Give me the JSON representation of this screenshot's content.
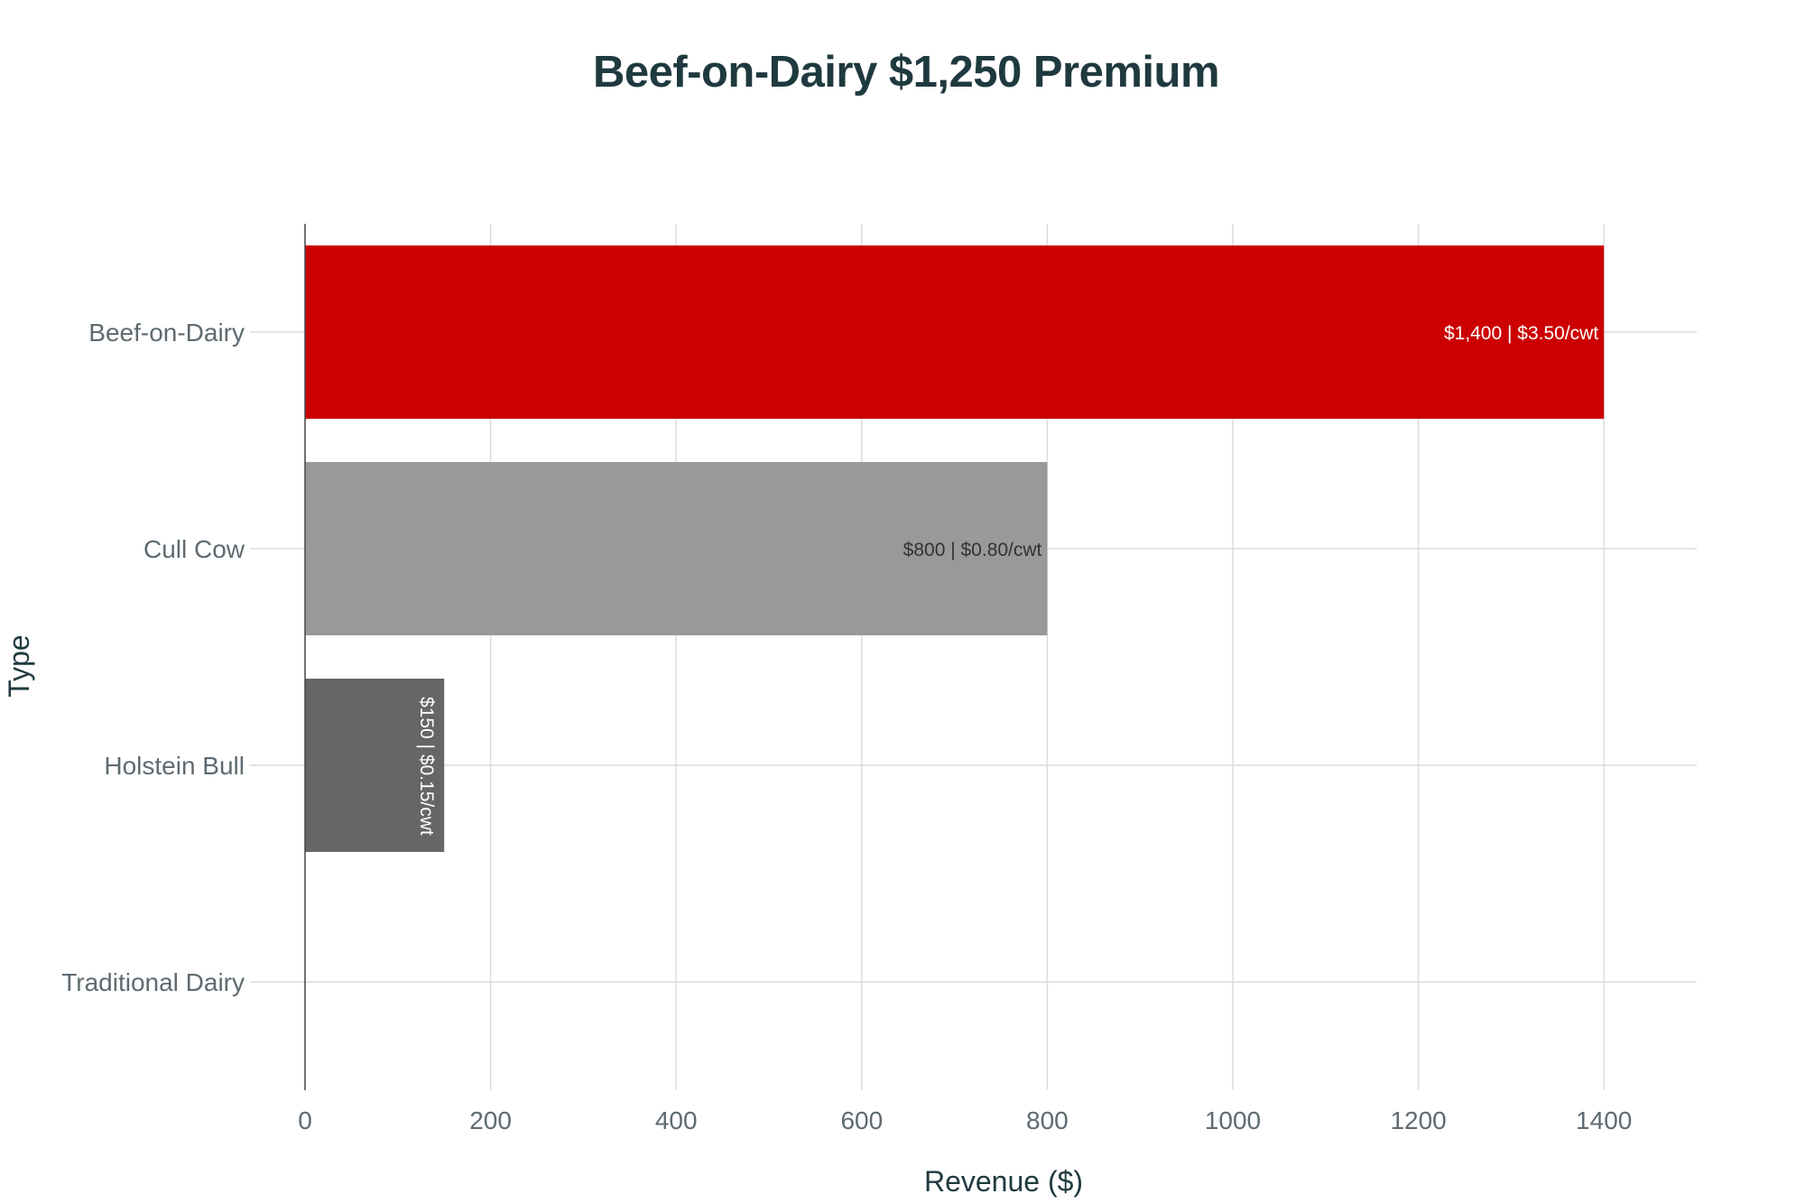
{
  "chart_data": {
    "type": "bar",
    "orientation": "horizontal",
    "title": "Beef-on-Dairy $1,250 Premium",
    "xlabel": "Revenue ($)",
    "ylabel": "Type",
    "categories": [
      "Beef-on-Dairy",
      "Cull Cow",
      "Holstein Bull",
      "Traditional Dairy"
    ],
    "values": [
      1400,
      800,
      150,
      0
    ],
    "bar_labels": [
      "$1,400 | $3.50/cwt",
      "$800 | $0.80/cwt",
      "$150 | $0.15/cwt",
      ""
    ],
    "bar_colors": [
      "#cc0000",
      "#999999",
      "#666666",
      "#666666"
    ],
    "bar_label_colors": [
      "#ffffff",
      "#333333",
      "#ffffff",
      "#ffffff"
    ],
    "xlim": [
      0,
      1500
    ],
    "xticks": [
      0,
      200,
      400,
      600,
      800,
      1000,
      1200,
      1400
    ],
    "grid": true,
    "legend": "none"
  }
}
